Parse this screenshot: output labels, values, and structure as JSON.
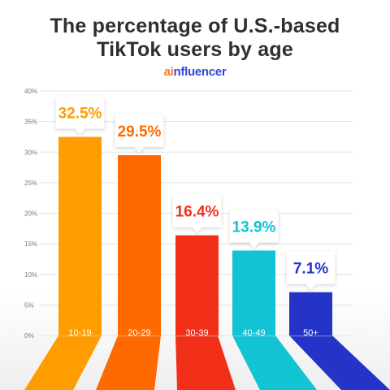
{
  "header": {
    "title_line1": "The percentage of U.S.-based",
    "title_line2": "TikTok users by age",
    "brand_a": "ai",
    "brand_b": "nfluencer"
  },
  "colors": {
    "brand_a": "#ff7a1a",
    "brand_b": "#2f49d6",
    "bars": [
      "#ff9d00",
      "#ff6a00",
      "#f2301a",
      "#12c3d3",
      "#2434c9"
    ]
  },
  "chart_data": {
    "type": "bar",
    "title": "The percentage of U.S.-based TikTok users by age",
    "categories": [
      "10-19",
      "20-29",
      "30-39",
      "40-49",
      "50+"
    ],
    "values": [
      32.5,
      29.5,
      16.4,
      13.9,
      7.1
    ],
    "value_labels": [
      "32.5%",
      "29.5%",
      "16.4%",
      "13.9%",
      "7.1%"
    ],
    "yticks": [
      "0%",
      "5%",
      "10%",
      "15%",
      "20%",
      "25%",
      "30%",
      "35%",
      "40%"
    ],
    "ylim": [
      0,
      40
    ],
    "xlabel": "",
    "ylabel": "",
    "grid": true
  }
}
